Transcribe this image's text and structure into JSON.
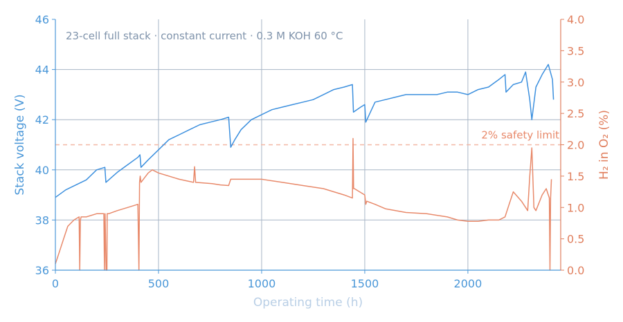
{
  "chart_data": {
    "type": "line",
    "annotation": "23-cell full stack · constant current · 0.3 M KOH 60 °C",
    "xlabel": "Operating time (h)",
    "ylabel_left": "Stack voltage (V)",
    "ylabel_right": "H₂ in O₂ (%)",
    "xlim": [
      0,
      2450
    ],
    "ylim_left": [
      36,
      46
    ],
    "ylim_right": [
      0,
      4
    ],
    "x_ticks": [
      0,
      500,
      1000,
      1500,
      2000
    ],
    "y_ticks_left": [
      36,
      38,
      40,
      42,
      44,
      46
    ],
    "y_ticks_right": [
      "0.0",
      "0.5",
      "1.0",
      "1.5",
      "2.0",
      "2.5",
      "3.0",
      "3.5",
      "4.0"
    ],
    "grid": true,
    "safety_limit": {
      "value": 2.0,
      "label": "2% safety limit"
    },
    "colors": {
      "voltage": "#3b8fde",
      "h2": "#e8896a",
      "limit": "#f2b8a6",
      "grid": "#a7b5c6",
      "axis_left": "#4a97d8",
      "axis_right": "#e07f5e",
      "xlabel": "#b9cfe6",
      "annotation": "#7f93ab"
    },
    "series": [
      {
        "axis": "left",
        "x": [
          0,
          50,
          100,
          150,
          200,
          240,
          245,
          300,
          350,
          400,
          410,
          415,
          450,
          500,
          550,
          600,
          650,
          700,
          750,
          800,
          840,
          850,
          870,
          900,
          950,
          1000,
          1050,
          1100,
          1150,
          1200,
          1250,
          1300,
          1350,
          1400,
          1440,
          1445,
          1480,
          1500,
          1505,
          1550,
          1600,
          1650,
          1700,
          1750,
          1800,
          1850,
          1900,
          1950,
          2000,
          2050,
          2100,
          2150,
          2180,
          2185,
          2220,
          2260,
          2280,
          2300,
          2310,
          2330,
          2360,
          2390,
          2410,
          2415
        ],
        "values": [
          38.9,
          39.2,
          39.4,
          39.6,
          40.0,
          40.1,
          39.5,
          39.9,
          40.2,
          40.5,
          40.6,
          40.1,
          40.4,
          40.8,
          41.2,
          41.4,
          41.6,
          41.8,
          41.9,
          42.0,
          42.1,
          40.9,
          41.2,
          41.6,
          42.0,
          42.2,
          42.4,
          42.5,
          42.6,
          42.7,
          42.8,
          43.0,
          43.2,
          43.3,
          43.4,
          42.3,
          42.5,
          42.6,
          41.9,
          42.7,
          42.8,
          42.9,
          43.0,
          43.0,
          43.0,
          43.0,
          43.1,
          43.1,
          43.0,
          43.2,
          43.3,
          43.6,
          43.8,
          43.1,
          43.4,
          43.5,
          43.9,
          42.8,
          42.0,
          43.3,
          43.8,
          44.2,
          43.6,
          42.8
        ]
      },
      {
        "axis": "right",
        "x": [
          0,
          10,
          20,
          40,
          60,
          90,
          115,
          118,
          121,
          125,
          150,
          200,
          235,
          238,
          241,
          246,
          250,
          251,
          254,
          258,
          300,
          350,
          400,
          405,
          408,
          411,
          415,
          450,
          470,
          500,
          600,
          670,
          675,
          680,
          760,
          800,
          840,
          850,
          860,
          1000,
          1100,
          1200,
          1300,
          1400,
          1440,
          1443,
          1446,
          1450,
          1500,
          1505,
          1510,
          1550,
          1600,
          1700,
          1800,
          1900,
          1950,
          2000,
          2050,
          2100,
          2150,
          2180,
          2200,
          2220,
          2260,
          2290,
          2300,
          2310,
          2320,
          2330,
          2360,
          2380,
          2395,
          2398,
          2401,
          2405
        ],
        "values": [
          0.1,
          0.2,
          0.3,
          0.5,
          0.7,
          0.8,
          0.85,
          0.0,
          0.8,
          0.85,
          0.85,
          0.9,
          0.9,
          0.0,
          0.9,
          0.0,
          0.0,
          0.9,
          0.9,
          0.9,
          0.95,
          1.0,
          1.05,
          0.0,
          1.4,
          1.5,
          1.4,
          1.55,
          1.6,
          1.55,
          1.45,
          1.4,
          1.65,
          1.4,
          1.38,
          1.36,
          1.35,
          1.45,
          1.45,
          1.45,
          1.4,
          1.35,
          1.3,
          1.2,
          1.15,
          2.1,
          1.3,
          1.3,
          1.2,
          1.05,
          1.1,
          1.05,
          0.98,
          0.92,
          0.9,
          0.85,
          0.8,
          0.78,
          0.78,
          0.8,
          0.8,
          0.85,
          1.05,
          1.25,
          1.1,
          0.95,
          1.5,
          1.95,
          1.0,
          0.95,
          1.2,
          1.3,
          1.15,
          0.0,
          1.15,
          1.45
        ]
      }
    ]
  }
}
